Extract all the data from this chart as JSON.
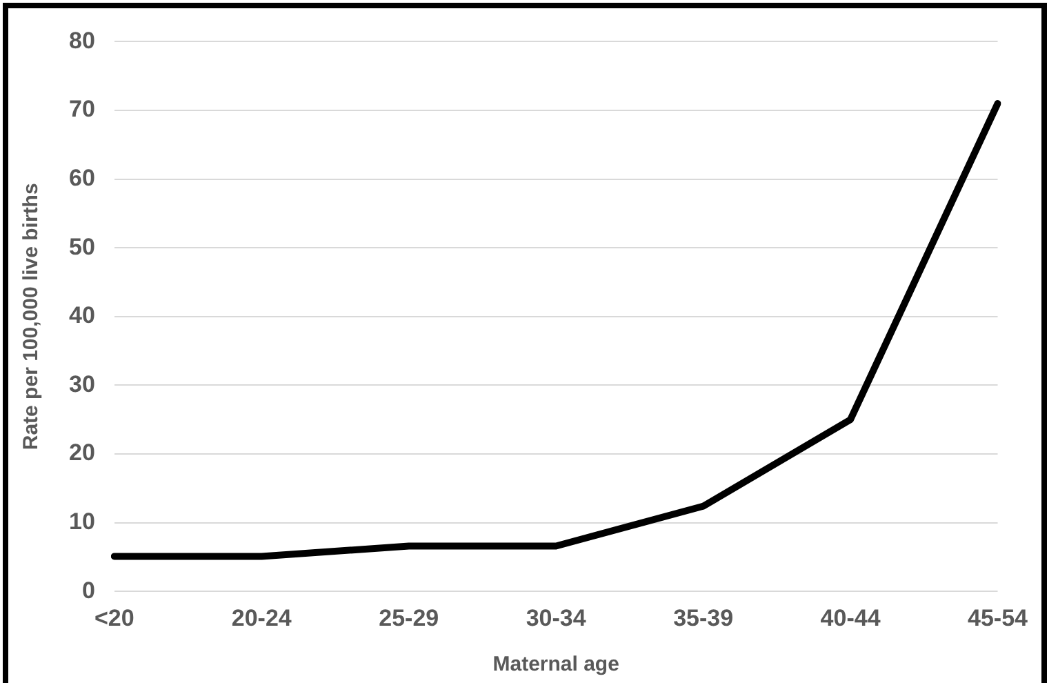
{
  "chart_data": {
    "type": "line",
    "xlabel": "Maternal age",
    "ylabel": "Rate per 100,000 live births",
    "categories": [
      "<20",
      "20-24",
      "25-29",
      "30-34",
      "35-39",
      "40-44",
      "45-54"
    ],
    "series": [
      {
        "color": "#000000",
        "values": [
          5.1,
          5.1,
          6.6,
          6.6,
          12.4,
          25,
          71
        ]
      }
    ],
    "ylim": [
      0,
      80
    ],
    "yticks": [
      0,
      10,
      20,
      30,
      40,
      50,
      60,
      70,
      80
    ],
    "grid": "y",
    "legend": false,
    "marker": "none",
    "line_style": "solid"
  }
}
